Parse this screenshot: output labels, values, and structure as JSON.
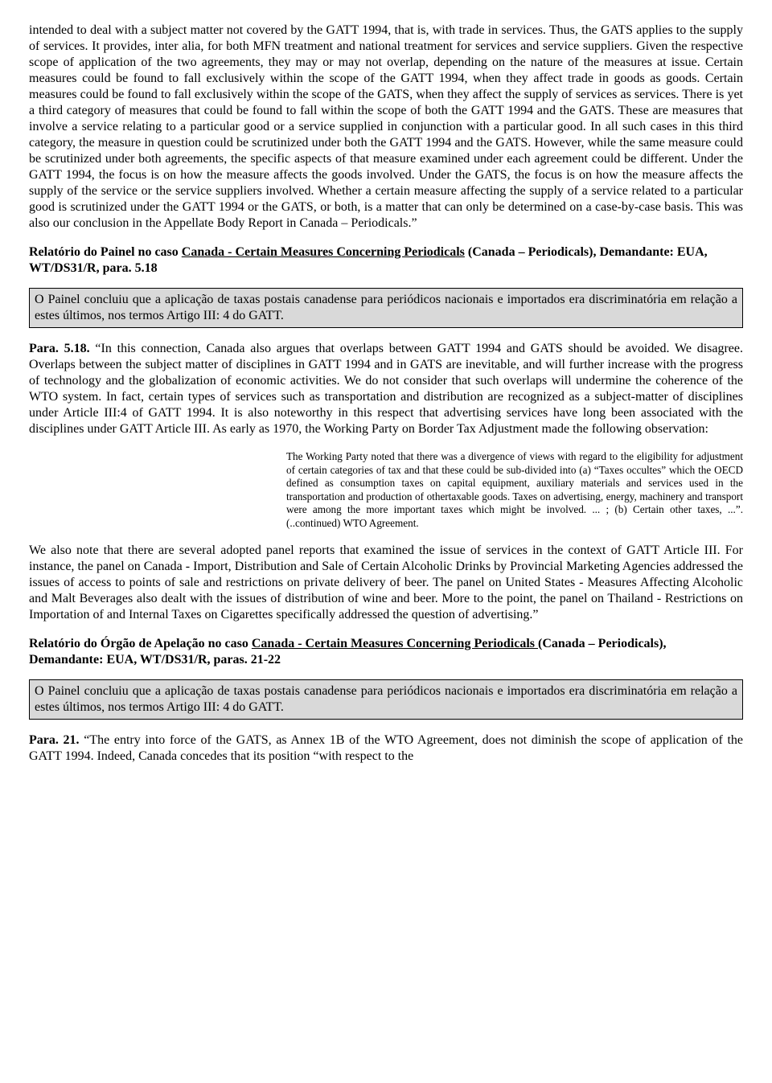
{
  "p1": "intended to deal with a subject matter not covered by the GATT 1994, that is, with trade in services. Thus, the GATS applies to the supply of services. It provides, inter alia, for both MFN treatment and national treatment for services and service suppliers. Given the respective scope of application of the two agreements, they may or may not overlap, depending on the nature of the measures at issue. Certain measures could be found to fall exclusively within the scope of the GATT 1994, when they affect trade in goods as goods. Certain measures could be found to fall exclusively within the scope of the GATS, when they affect the supply of services as services. There is yet a third category of measures that could be found to fall within the scope of both the GATT 1994 and the GATS. These are measures that involve a service relating to a particular good or a service supplied in conjunction with a particular good. In all such cases in this third category, the measure in question could be scrutinized under both the GATT 1994 and the GATS. However, while the same measure could be scrutinized under both agreements, the specific aspects of that measure examined under each agreement could be different. Under the GATT 1994, the focus is on how the measure affects the goods involved. Under the GATS, the focus is on how the measure affects the supply of the service or the service suppliers involved. Whether a certain measure affecting the supply of a service related to a particular good is scrutinized under the GATT 1994 or the GATS, or both, is a matter that can only be determined on a case-by-case basis. This was also our conclusion in the Appellate Body Report in Canada – Periodicals.”",
  "h1": {
    "pre": "Relatório do Painel no caso ",
    "case": "Canada - Certain Measures Concerning Periodicals",
    "post": " (Canada – Periodicals), Demandante: EUA, WT/DS31/R, para. 5.18"
  },
  "box1": "O Painel concluiu que a aplicação de taxas postais canadense para periódicos nacionais e importados era discriminatória em relação a estes últimos, nos termos Artigo III: 4 do GATT.",
  "p2": {
    "lead": "Para. 5.18.",
    "body": " “In this connection, Canada also argues that overlaps between GATT 1994 and GATS should be avoided. We disagree. Overlaps between the subject matter of disciplines in GATT 1994 and in GATS are inevitable, and will further increase with the progress of technology and the globalization of economic activities. We do not consider that such overlaps will undermine the coherence of the WTO system. In fact, certain types of services such as transportation and distribution are recognized as a subject-matter of disciplines under Article III:4 of GATT 1994. It is also noteworthy in this respect that advertising services have long been associated with the disciplines under GATT Article III. As early as 1970, the Working Party on Border Tax Adjustment made the following observation:"
  },
  "bq": "The Working Party noted that there was a divergence of views with regard to the eligibility for adjustment of certain categories of tax and that these could be sub-divided into (a) “Taxes occultes” which the OECD defined as consumption taxes on capital equipment, auxiliary materials and services used in the transportation and production of othertaxable goods. Taxes on advertising, energy, machinery and transport were among the more important taxes which might be involved. ... ; (b) Certain other taxes, ...”. (..continued) WTO Agreement.",
  "p3": "We also note that there are several adopted panel reports that examined the issue of services in the context of GATT Article III. For instance, the panel on Canada - Import, Distribution and Sale of Certain Alcoholic Drinks by Provincial Marketing Agencies addressed the issues of access to points of sale and restrictions on private delivery of beer. The panel on United States - Measures Affecting Alcoholic and Malt Beverages also dealt with the issues of distribution of wine and beer. More to the point, the panel on Thailand - Restrictions on Importation of and Internal Taxes on Cigarettes specifically addressed the question of advertising.”",
  "h2": {
    "pre": "Relatório do Órgão de Apelação no caso ",
    "case": "Canada - Certain Measures Concerning Periodicals ",
    "post": "(Canada – Periodicals), Demandante: EUA, WT/DS31/R, paras. 21-22"
  },
  "box2": "O Painel concluiu que a aplicação de taxas postais canadense para periódicos nacionais e importados era discriminatória em relação a estes últimos, nos termos Artigo III: 4 do GATT.",
  "p4": {
    "lead": "Para. 21.",
    "body": " “The entry into force of the GATS, as Annex 1B of the WTO Agreement, does not diminish the scope of application of the GATT 1994. Indeed, Canada concedes that its position “with respect to the"
  }
}
